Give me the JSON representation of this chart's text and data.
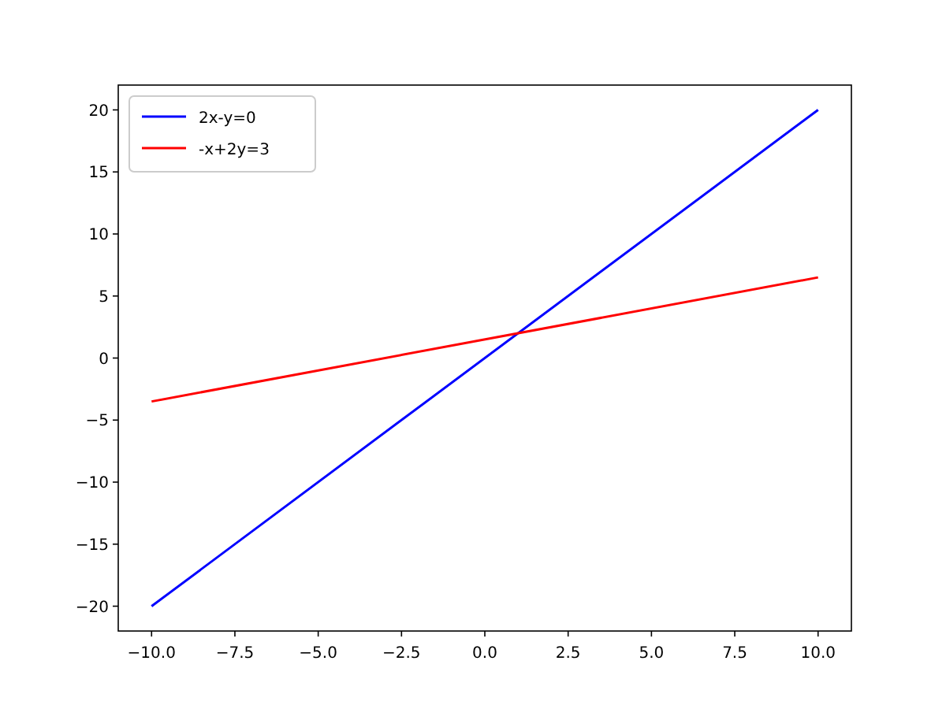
{
  "chart_data": {
    "type": "line",
    "x": [
      -10,
      10
    ],
    "series": [
      {
        "name": "2x-y=0",
        "color": "#0000ff",
        "values": [
          -20,
          20
        ]
      },
      {
        "name": "-x+2y=3",
        "color": "#ff0000",
        "values": [
          -3.5,
          6.5
        ]
      }
    ],
    "xlim": [
      -11,
      11
    ],
    "ylim": [
      -22,
      22
    ],
    "xticks": [
      {
        "value": -10,
        "label": "−10.0"
      },
      {
        "value": -7.5,
        "label": "−7.5"
      },
      {
        "value": -5,
        "label": "−5.0"
      },
      {
        "value": -2.5,
        "label": "−2.5"
      },
      {
        "value": 0,
        "label": "0.0"
      },
      {
        "value": 2.5,
        "label": "2.5"
      },
      {
        "value": 5,
        "label": "5.0"
      },
      {
        "value": 7.5,
        "label": "7.5"
      },
      {
        "value": 10,
        "label": "10.0"
      }
    ],
    "yticks": [
      {
        "value": -20,
        "label": "−20"
      },
      {
        "value": -15,
        "label": "−15"
      },
      {
        "value": -10,
        "label": "−10"
      },
      {
        "value": -5,
        "label": "−5"
      },
      0,
      5,
      10,
      15,
      20
    ],
    "grid": false,
    "legend": "top left",
    "marker": "none",
    "line_style": "solid"
  }
}
